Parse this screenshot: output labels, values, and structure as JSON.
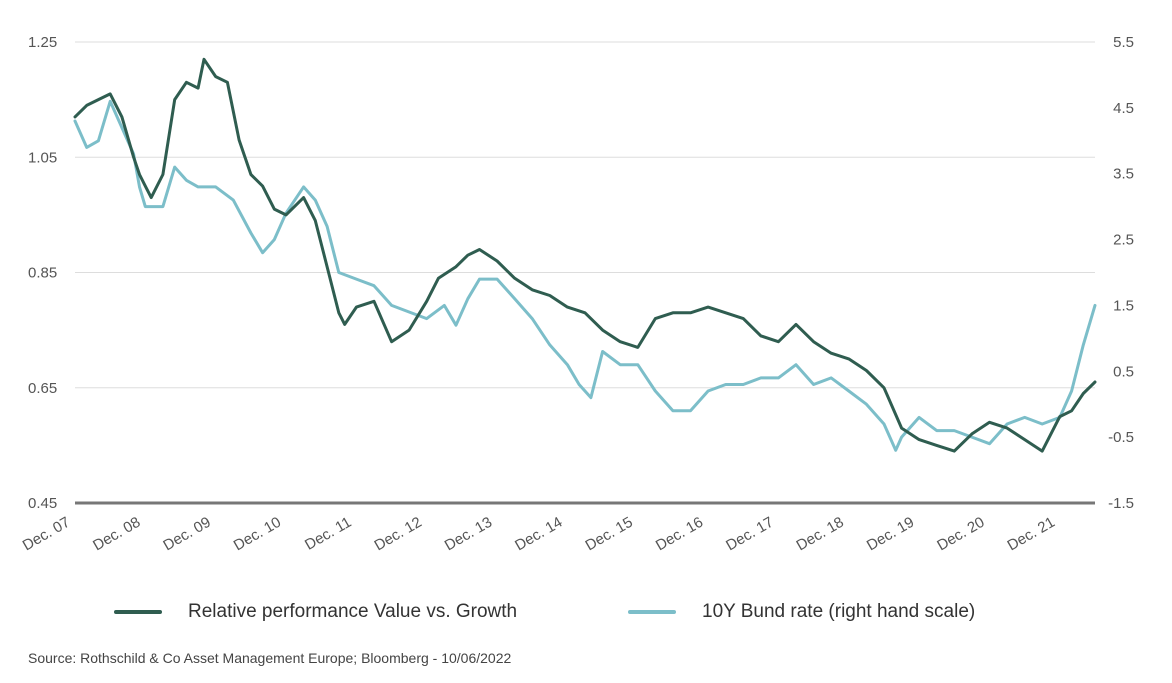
{
  "colors": {
    "value_growth": "#2f5d50",
    "bund": "#7cbec9",
    "grid": "#dddddd",
    "axis": "#777777"
  },
  "legend": [
    {
      "label": "Relative performance Value vs. Growth",
      "color": "#2f5d50"
    },
    {
      "label": "10Y Bund rate (right hand scale)",
      "color": "#7cbec9"
    }
  ],
  "source": "Source: Rothschild & Co Asset Management Europe; Bloomberg - 10/06/2022",
  "chart_data": {
    "type": "line",
    "x_ticks": [
      "Dec. 07",
      "Dec. 08",
      "Dec. 09",
      "Dec. 10",
      "Dec. 11",
      "Dec. 12",
      "Dec. 13",
      "Dec. 14",
      "Dec. 15",
      "Dec. 16",
      "Dec. 17",
      "Dec. 18",
      "Dec. 19",
      "Dec. 20",
      "Dec. 21"
    ],
    "x_range": [
      "2007-12",
      "2022-06"
    ],
    "y_left": {
      "ticks": [
        "1.25",
        "1.05",
        "0.85",
        "0.65",
        "0.45"
      ],
      "range": [
        0.45,
        1.25
      ]
    },
    "y_right": {
      "ticks": [
        "5.5",
        "4.5",
        "3.5",
        "2.5",
        "1.5",
        "0.5",
        "-0.5",
        "-1.5"
      ],
      "range": [
        -1.5,
        5.5
      ]
    },
    "grid": "horizontal",
    "legend_position": "bottom",
    "series": [
      {
        "name": "Relative performance Value vs. Growth",
        "axis": "left",
        "x": [
          "2007-12",
          "2008-02",
          "2008-04",
          "2008-06",
          "2008-08",
          "2008-10",
          "2008-11",
          "2008-12",
          "2009-01",
          "2009-03",
          "2009-05",
          "2009-07",
          "2009-09",
          "2009-10",
          "2009-12",
          "2010-02",
          "2010-04",
          "2010-06",
          "2010-08",
          "2010-10",
          "2010-12",
          "2011-03",
          "2011-05",
          "2011-07",
          "2011-09",
          "2011-10",
          "2011-12",
          "2012-03",
          "2012-06",
          "2012-09",
          "2012-12",
          "2013-02",
          "2013-05",
          "2013-07",
          "2013-09",
          "2013-12",
          "2014-03",
          "2014-06",
          "2014-09",
          "2014-12",
          "2015-03",
          "2015-06",
          "2015-09",
          "2015-12",
          "2016-03",
          "2016-06",
          "2016-09",
          "2016-12",
          "2017-03",
          "2017-06",
          "2017-09",
          "2017-12",
          "2018-03",
          "2018-06",
          "2018-09",
          "2018-12",
          "2019-03",
          "2019-06",
          "2019-09",
          "2019-12",
          "2020-03",
          "2020-06",
          "2020-09",
          "2020-12",
          "2021-03",
          "2021-06",
          "2021-09",
          "2021-12",
          "2022-02",
          "2022-04",
          "2022-06"
        ],
        "values": [
          1.12,
          1.14,
          1.15,
          1.16,
          1.12,
          1.05,
          1.02,
          1.0,
          0.98,
          1.02,
          1.15,
          1.18,
          1.17,
          1.22,
          1.19,
          1.18,
          1.08,
          1.02,
          1.0,
          0.96,
          0.95,
          0.98,
          0.94,
          0.86,
          0.78,
          0.76,
          0.79,
          0.8,
          0.73,
          0.75,
          0.8,
          0.84,
          0.86,
          0.88,
          0.89,
          0.87,
          0.84,
          0.82,
          0.81,
          0.79,
          0.78,
          0.75,
          0.73,
          0.72,
          0.77,
          0.78,
          0.78,
          0.79,
          0.78,
          0.77,
          0.74,
          0.73,
          0.76,
          0.73,
          0.71,
          0.7,
          0.68,
          0.65,
          0.58,
          0.56,
          0.55,
          0.54,
          0.57,
          0.59,
          0.58,
          0.56,
          0.54,
          0.6,
          0.61,
          0.64,
          0.66
        ]
      },
      {
        "name": "10Y Bund rate (right hand scale)",
        "axis": "right",
        "x": [
          "2007-12",
          "2008-02",
          "2008-04",
          "2008-06",
          "2008-08",
          "2008-10",
          "2008-11",
          "2008-12",
          "2009-01",
          "2009-03",
          "2009-05",
          "2009-07",
          "2009-09",
          "2009-12",
          "2010-03",
          "2010-06",
          "2010-08",
          "2010-10",
          "2010-12",
          "2011-03",
          "2011-05",
          "2011-07",
          "2011-09",
          "2011-12",
          "2012-03",
          "2012-06",
          "2012-09",
          "2012-12",
          "2013-03",
          "2013-05",
          "2013-07",
          "2013-09",
          "2013-12",
          "2014-03",
          "2014-06",
          "2014-09",
          "2014-12",
          "2015-02",
          "2015-04",
          "2015-06",
          "2015-09",
          "2015-12",
          "2016-03",
          "2016-06",
          "2016-09",
          "2016-12",
          "2017-03",
          "2017-06",
          "2017-09",
          "2017-12",
          "2018-03",
          "2018-06",
          "2018-09",
          "2018-12",
          "2019-03",
          "2019-06",
          "2019-08",
          "2019-09",
          "2019-12",
          "2020-03",
          "2020-06",
          "2020-09",
          "2020-12",
          "2021-03",
          "2021-06",
          "2021-09",
          "2021-12",
          "2022-02",
          "2022-04",
          "2022-06"
        ],
        "values": [
          4.3,
          3.9,
          4.0,
          4.6,
          4.2,
          3.8,
          3.3,
          3.0,
          3.0,
          3.0,
          3.6,
          3.4,
          3.3,
          3.3,
          3.1,
          2.6,
          2.3,
          2.5,
          2.9,
          3.3,
          3.1,
          2.7,
          2.0,
          1.9,
          1.8,
          1.5,
          1.4,
          1.3,
          1.5,
          1.2,
          1.6,
          1.9,
          1.9,
          1.6,
          1.3,
          0.9,
          0.6,
          0.3,
          0.1,
          0.8,
          0.6,
          0.6,
          0.2,
          -0.1,
          -0.1,
          0.2,
          0.3,
          0.3,
          0.4,
          0.4,
          0.6,
          0.3,
          0.4,
          0.2,
          0.0,
          -0.3,
          -0.7,
          -0.5,
          -0.2,
          -0.4,
          -0.4,
          -0.5,
          -0.6,
          -0.3,
          -0.2,
          -0.3,
          -0.2,
          0.2,
          0.9,
          1.5
        ]
      }
    ]
  }
}
